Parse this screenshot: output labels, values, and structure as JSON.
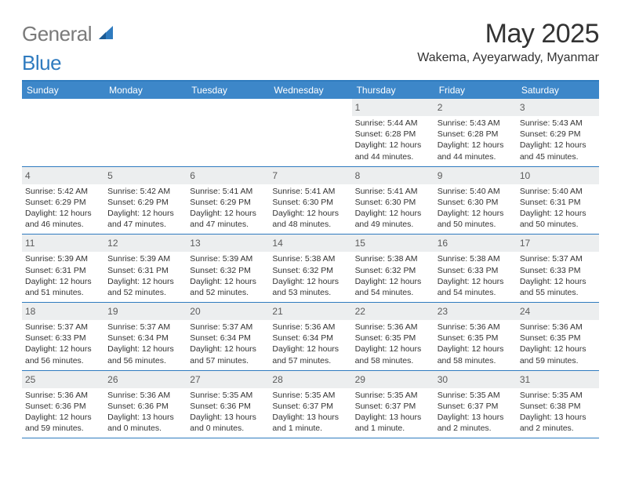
{
  "logo": {
    "general": "General",
    "blue": "Blue"
  },
  "title": "May 2025",
  "location": "Wakema, Ayeyarwady, Myanmar",
  "colors": {
    "header_bg": "#3d87c9",
    "header_border": "#2f7bbf",
    "daynum_bg": "#eceeef",
    "text": "#333333",
    "logo_gray": "#7a7a7a",
    "logo_blue": "#2f7bbf"
  },
  "days_of_week": [
    "Sunday",
    "Monday",
    "Tuesday",
    "Wednesday",
    "Thursday",
    "Friday",
    "Saturday"
  ],
  "weeks": [
    [
      null,
      null,
      null,
      null,
      {
        "n": "1",
        "sunrise": "5:44 AM",
        "sunset": "6:28 PM",
        "d1": "Daylight: 12 hours",
        "d2": "and 44 minutes."
      },
      {
        "n": "2",
        "sunrise": "5:43 AM",
        "sunset": "6:28 PM",
        "d1": "Daylight: 12 hours",
        "d2": "and 44 minutes."
      },
      {
        "n": "3",
        "sunrise": "5:43 AM",
        "sunset": "6:29 PM",
        "d1": "Daylight: 12 hours",
        "d2": "and 45 minutes."
      }
    ],
    [
      {
        "n": "4",
        "sunrise": "5:42 AM",
        "sunset": "6:29 PM",
        "d1": "Daylight: 12 hours",
        "d2": "and 46 minutes."
      },
      {
        "n": "5",
        "sunrise": "5:42 AM",
        "sunset": "6:29 PM",
        "d1": "Daylight: 12 hours",
        "d2": "and 47 minutes."
      },
      {
        "n": "6",
        "sunrise": "5:41 AM",
        "sunset": "6:29 PM",
        "d1": "Daylight: 12 hours",
        "d2": "and 47 minutes."
      },
      {
        "n": "7",
        "sunrise": "5:41 AM",
        "sunset": "6:30 PM",
        "d1": "Daylight: 12 hours",
        "d2": "and 48 minutes."
      },
      {
        "n": "8",
        "sunrise": "5:41 AM",
        "sunset": "6:30 PM",
        "d1": "Daylight: 12 hours",
        "d2": "and 49 minutes."
      },
      {
        "n": "9",
        "sunrise": "5:40 AM",
        "sunset": "6:30 PM",
        "d1": "Daylight: 12 hours",
        "d2": "and 50 minutes."
      },
      {
        "n": "10",
        "sunrise": "5:40 AM",
        "sunset": "6:31 PM",
        "d1": "Daylight: 12 hours",
        "d2": "and 50 minutes."
      }
    ],
    [
      {
        "n": "11",
        "sunrise": "5:39 AM",
        "sunset": "6:31 PM",
        "d1": "Daylight: 12 hours",
        "d2": "and 51 minutes."
      },
      {
        "n": "12",
        "sunrise": "5:39 AM",
        "sunset": "6:31 PM",
        "d1": "Daylight: 12 hours",
        "d2": "and 52 minutes."
      },
      {
        "n": "13",
        "sunrise": "5:39 AM",
        "sunset": "6:32 PM",
        "d1": "Daylight: 12 hours",
        "d2": "and 52 minutes."
      },
      {
        "n": "14",
        "sunrise": "5:38 AM",
        "sunset": "6:32 PM",
        "d1": "Daylight: 12 hours",
        "d2": "and 53 minutes."
      },
      {
        "n": "15",
        "sunrise": "5:38 AM",
        "sunset": "6:32 PM",
        "d1": "Daylight: 12 hours",
        "d2": "and 54 minutes."
      },
      {
        "n": "16",
        "sunrise": "5:38 AM",
        "sunset": "6:33 PM",
        "d1": "Daylight: 12 hours",
        "d2": "and 54 minutes."
      },
      {
        "n": "17",
        "sunrise": "5:37 AM",
        "sunset": "6:33 PM",
        "d1": "Daylight: 12 hours",
        "d2": "and 55 minutes."
      }
    ],
    [
      {
        "n": "18",
        "sunrise": "5:37 AM",
        "sunset": "6:33 PM",
        "d1": "Daylight: 12 hours",
        "d2": "and 56 minutes."
      },
      {
        "n": "19",
        "sunrise": "5:37 AM",
        "sunset": "6:34 PM",
        "d1": "Daylight: 12 hours",
        "d2": "and 56 minutes."
      },
      {
        "n": "20",
        "sunrise": "5:37 AM",
        "sunset": "6:34 PM",
        "d1": "Daylight: 12 hours",
        "d2": "and 57 minutes."
      },
      {
        "n": "21",
        "sunrise": "5:36 AM",
        "sunset": "6:34 PM",
        "d1": "Daylight: 12 hours",
        "d2": "and 57 minutes."
      },
      {
        "n": "22",
        "sunrise": "5:36 AM",
        "sunset": "6:35 PM",
        "d1": "Daylight: 12 hours",
        "d2": "and 58 minutes."
      },
      {
        "n": "23",
        "sunrise": "5:36 AM",
        "sunset": "6:35 PM",
        "d1": "Daylight: 12 hours",
        "d2": "and 58 minutes."
      },
      {
        "n": "24",
        "sunrise": "5:36 AM",
        "sunset": "6:35 PM",
        "d1": "Daylight: 12 hours",
        "d2": "and 59 minutes."
      }
    ],
    [
      {
        "n": "25",
        "sunrise": "5:36 AM",
        "sunset": "6:36 PM",
        "d1": "Daylight: 12 hours",
        "d2": "and 59 minutes."
      },
      {
        "n": "26",
        "sunrise": "5:36 AM",
        "sunset": "6:36 PM",
        "d1": "Daylight: 13 hours",
        "d2": "and 0 minutes."
      },
      {
        "n": "27",
        "sunrise": "5:35 AM",
        "sunset": "6:36 PM",
        "d1": "Daylight: 13 hours",
        "d2": "and 0 minutes."
      },
      {
        "n": "28",
        "sunrise": "5:35 AM",
        "sunset": "6:37 PM",
        "d1": "Daylight: 13 hours",
        "d2": "and 1 minute."
      },
      {
        "n": "29",
        "sunrise": "5:35 AM",
        "sunset": "6:37 PM",
        "d1": "Daylight: 13 hours",
        "d2": "and 1 minute."
      },
      {
        "n": "30",
        "sunrise": "5:35 AM",
        "sunset": "6:37 PM",
        "d1": "Daylight: 13 hours",
        "d2": "and 2 minutes."
      },
      {
        "n": "31",
        "sunrise": "5:35 AM",
        "sunset": "6:38 PM",
        "d1": "Daylight: 13 hours",
        "d2": "and 2 minutes."
      }
    ]
  ],
  "labels": {
    "sunrise_prefix": "Sunrise: ",
    "sunset_prefix": "Sunset: "
  }
}
